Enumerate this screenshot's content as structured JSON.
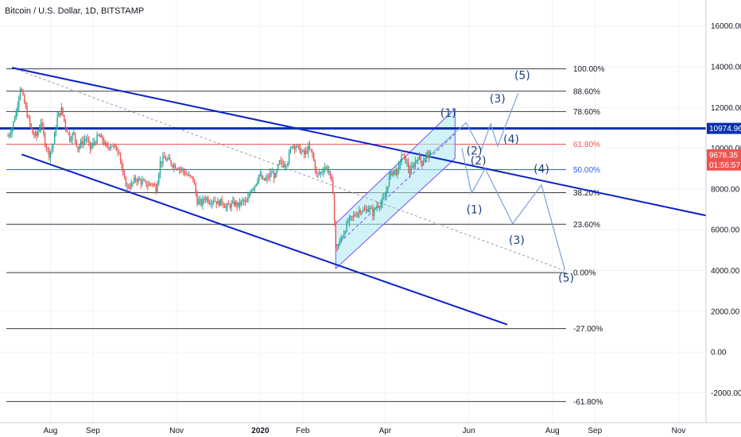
{
  "header": {
    "title": "Bitcoin / U.S. Dollar, 1D, BITSTAMP"
  },
  "chart_data": {
    "type": "candlestick",
    "symbol": "Bitcoin / U.S. Dollar",
    "interval": "1D",
    "exchange": "BITSTAMP",
    "y_ticks": [
      16000,
      14000,
      12000,
      10000,
      8000,
      6000,
      4000,
      2000,
      0,
      -2000
    ],
    "y_tick_labels": [
      "16000.00",
      "14000.00",
      "12000.00",
      "10000.00",
      "8000.00",
      "6000.00",
      "4000.00",
      "2000.00",
      "0.00",
      "-2000.00"
    ],
    "x_ticks": [
      {
        "label": "Aug",
        "day": 31,
        "bold": false
      },
      {
        "label": "Sep",
        "day": 62,
        "bold": false
      },
      {
        "label": "Nov",
        "day": 123,
        "bold": false
      },
      {
        "label": "2020",
        "day": 184,
        "bold": true
      },
      {
        "label": "Feb",
        "day": 215,
        "bold": false
      },
      {
        "label": "Apr",
        "day": 275,
        "bold": false
      },
      {
        "label": "Jun",
        "day": 336,
        "bold": false
      },
      {
        "label": "Aug",
        "day": 397,
        "bold": false
      },
      {
        "label": "Sep",
        "day": 428,
        "bold": false
      },
      {
        "label": "Nov",
        "day": 489,
        "bold": false
      }
    ],
    "price_path": [
      [
        0,
        10600
      ],
      [
        3,
        11000
      ],
      [
        6,
        11800
      ],
      [
        9,
        13000
      ],
      [
        12,
        12200
      ],
      [
        15,
        11400
      ],
      [
        18,
        10700
      ],
      [
        21,
        10600
      ],
      [
        24,
        11300
      ],
      [
        27,
        10300
      ],
      [
        30,
        9700
      ],
      [
        33,
        10200
      ],
      [
        36,
        11500
      ],
      [
        39,
        11900
      ],
      [
        42,
        11100
      ],
      [
        45,
        10500
      ],
      [
        48,
        10700
      ],
      [
        51,
        10000
      ],
      [
        54,
        10300
      ],
      [
        57,
        10500
      ],
      [
        60,
        10000
      ],
      [
        63,
        10300
      ],
      [
        66,
        10600
      ],
      [
        69,
        10400
      ],
      [
        72,
        10000
      ],
      [
        75,
        10200
      ],
      [
        78,
        10000
      ],
      [
        81,
        9900
      ],
      [
        84,
        8600
      ],
      [
        87,
        8100
      ],
      [
        90,
        8200
      ],
      [
        93,
        8500
      ],
      [
        96,
        8400
      ],
      [
        99,
        8300
      ],
      [
        102,
        8200
      ],
      [
        105,
        8300
      ],
      [
        108,
        8000
      ],
      [
        111,
        9300
      ],
      [
        114,
        9500
      ],
      [
        117,
        9400
      ],
      [
        120,
        9200
      ],
      [
        123,
        9100
      ],
      [
        126,
        9000
      ],
      [
        129,
        8800
      ],
      [
        132,
        8600
      ],
      [
        135,
        8500
      ],
      [
        138,
        7400
      ],
      [
        141,
        7300
      ],
      [
        144,
        7600
      ],
      [
        147,
        7400
      ],
      [
        150,
        7500
      ],
      [
        153,
        7300
      ],
      [
        156,
        7400
      ],
      [
        159,
        7100
      ],
      [
        162,
        7200
      ],
      [
        165,
        7300
      ],
      [
        168,
        7200
      ],
      [
        171,
        7400
      ],
      [
        174,
        7300
      ],
      [
        177,
        8000
      ],
      [
        180,
        8200
      ],
      [
        183,
        8700
      ],
      [
        186,
        8400
      ],
      [
        189,
        8500
      ],
      [
        192,
        8800
      ],
      [
        195,
        8600
      ],
      [
        198,
        9300
      ],
      [
        201,
        9200
      ],
      [
        204,
        9400
      ],
      [
        207,
        10200
      ],
      [
        210,
        10100
      ],
      [
        213,
        9900
      ],
      [
        216,
        9700
      ],
      [
        219,
        10000
      ],
      [
        222,
        9700
      ],
      [
        225,
        8700
      ],
      [
        228,
        8800
      ],
      [
        231,
        9100
      ],
      [
        234,
        8900
      ],
      [
        237,
        7900
      ],
      [
        239,
        5000
      ],
      [
        242,
        5400
      ],
      [
        245,
        5900
      ],
      [
        248,
        6400
      ],
      [
        251,
        6600
      ],
      [
        254,
        6800
      ],
      [
        257,
        7000
      ],
      [
        260,
        6900
      ],
      [
        263,
        7100
      ],
      [
        266,
        6800
      ],
      [
        269,
        7200
      ],
      [
        272,
        7300
      ],
      [
        275,
        7600
      ],
      [
        278,
        8600
      ],
      [
        281,
        8900
      ],
      [
        284,
        8800
      ],
      [
        287,
        9700
      ],
      [
        290,
        9400
      ],
      [
        293,
        8800
      ],
      [
        296,
        9200
      ],
      [
        299,
        9600
      ],
      [
        302,
        9300
      ],
      [
        305,
        9700
      ],
      [
        308,
        9650
      ]
    ],
    "fib_levels": [
      {
        "pct": "100.00%",
        "price": 13900,
        "color": "#131722"
      },
      {
        "pct": "88.60%",
        "price": 12800,
        "color": "#131722"
      },
      {
        "pct": "78.60%",
        "price": 11800,
        "color": "#131722"
      },
      {
        "pct": "61.80%",
        "price": 10200,
        "color": "#ef5350"
      },
      {
        "pct": "50.00%",
        "price": 8950,
        "color": "#2962ff"
      },
      {
        "pct": "38.20%",
        "price": 7820,
        "color": "#131722"
      },
      {
        "pct": "23.60%",
        "price": 6270,
        "color": "#131722"
      },
      {
        "pct": "0.00%",
        "price": 3900,
        "color": "#131722"
      },
      {
        "pct": "-27.00%",
        "price": 1150,
        "color": "#131722"
      },
      {
        "pct": "-61.80%",
        "price": -2430,
        "color": "#131722"
      }
    ],
    "price_tags": [
      {
        "label": "10974.96",
        "price": 10975,
        "color": "#0a2fb0"
      },
      {
        "label": "9678.35",
        "price": 9678,
        "color": "#ef5350"
      },
      {
        "label": "01:56:57",
        "price": 9180,
        "color": "#ef5350"
      }
    ],
    "wave_labels": {
      "upper": [
        "(1)",
        "(2)",
        "(3)",
        "(4)",
        "(5)"
      ],
      "lower": [
        "(1)",
        "(2)",
        "(3)",
        "(4)",
        "(5)"
      ]
    },
    "colors": {
      "up": "#26a69a",
      "down": "#ef5350",
      "trendline": "#0a21c6",
      "resistance": "#0a2fb0",
      "channel_fill": "#b2ebf2",
      "channel_edge": "#7c4dff",
      "projection": "#7a9fd9",
      "wave_text": "#1c3f7e"
    }
  }
}
